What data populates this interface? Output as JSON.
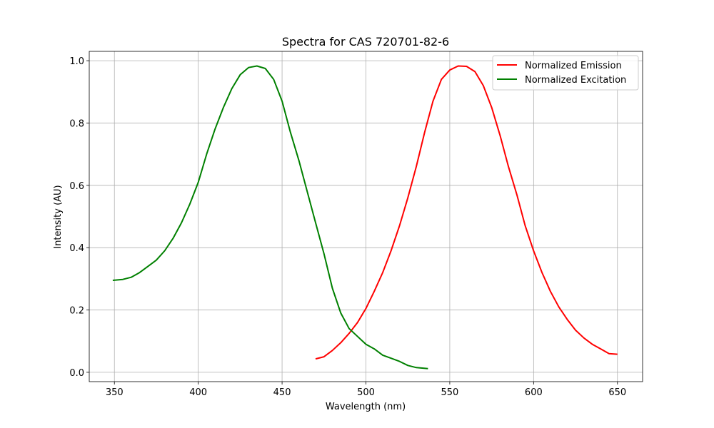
{
  "chart_data": {
    "type": "line",
    "title": "Spectra for CAS 720701-82-6",
    "xlabel": "Wavelength (nm)",
    "ylabel": "Intensity (AU)",
    "xlim": [
      335,
      665
    ],
    "ylim": [
      -0.03,
      1.03
    ],
    "x_ticks": [
      350,
      400,
      450,
      500,
      550,
      600,
      650
    ],
    "y_ticks": [
      0.0,
      0.2,
      0.4,
      0.6,
      0.8,
      1.0
    ],
    "grid": true,
    "legend_position": "top-right",
    "series": [
      {
        "name": "Normalized Emission",
        "color": "#ff0000",
        "x": [
          470,
          475,
          480,
          485,
          490,
          495,
          500,
          505,
          510,
          515,
          520,
          525,
          530,
          535,
          540,
          545,
          550,
          555,
          560,
          565,
          570,
          575,
          580,
          585,
          590,
          595,
          600,
          605,
          610,
          615,
          620,
          625,
          630,
          635,
          640,
          645,
          650
        ],
        "y": [
          0.043,
          0.05,
          0.07,
          0.095,
          0.125,
          0.16,
          0.205,
          0.26,
          0.32,
          0.39,
          0.47,
          0.56,
          0.66,
          0.77,
          0.87,
          0.94,
          0.97,
          0.983,
          0.982,
          0.965,
          0.92,
          0.85,
          0.76,
          0.66,
          0.57,
          0.47,
          0.39,
          0.32,
          0.26,
          0.21,
          0.17,
          0.135,
          0.11,
          0.09,
          0.075,
          0.06,
          0.058
        ]
      },
      {
        "name": "Normalized Excitation",
        "color": "#008000",
        "x": [
          349,
          355,
          360,
          365,
          370,
          375,
          380,
          385,
          390,
          395,
          400,
          405,
          410,
          415,
          420,
          425,
          430,
          435,
          440,
          445,
          450,
          455,
          460,
          465,
          470,
          475,
          480,
          485,
          490,
          495,
          500,
          505,
          510,
          515,
          520,
          525,
          530,
          537
        ],
        "y": [
          0.295,
          0.298,
          0.305,
          0.32,
          0.34,
          0.36,
          0.39,
          0.43,
          0.48,
          0.54,
          0.61,
          0.7,
          0.78,
          0.85,
          0.91,
          0.955,
          0.978,
          0.983,
          0.975,
          0.94,
          0.87,
          0.77,
          0.68,
          0.58,
          0.48,
          0.38,
          0.27,
          0.19,
          0.14,
          0.115,
          0.09,
          0.075,
          0.055,
          0.045,
          0.035,
          0.022,
          0.015,
          0.012
        ]
      }
    ]
  }
}
